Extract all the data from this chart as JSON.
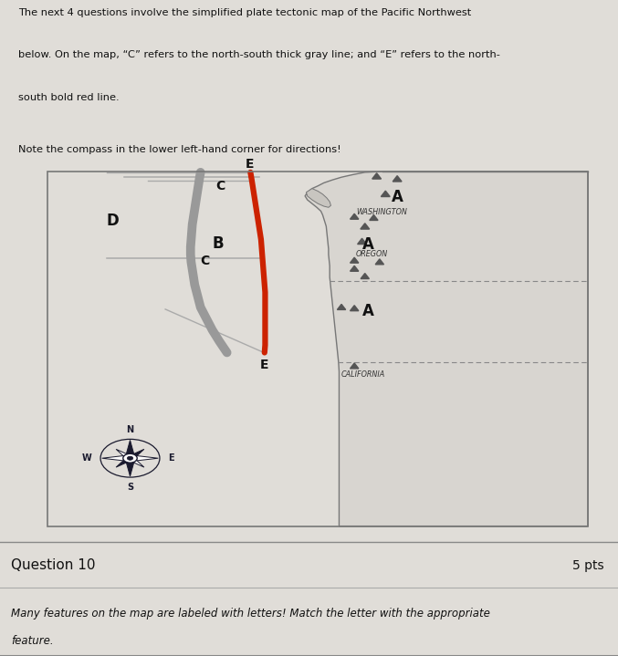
{
  "bg_color": "#e0ddd8",
  "map_area_bg": "#e8e5e0",
  "ocean_color": "#d8d5d0",
  "land_color": "#dddad5",
  "land_edge": "#888888",
  "gray_line_color": "#999999",
  "red_line_color": "#cc2200",
  "thin_line_color": "#aaaaaa",
  "compass_color": "#1a1a2e",
  "title_text1": "The next 4 questions involve the simplified plate tectonic map of the Pacific Northwest",
  "title_text2": "below. On the map, “C” refers to the north-south thick gray line; and “E” refers to the north-",
  "title_text3": "south bold red line.",
  "note_text": "Note the compass in the lower left-hand corner for directions!",
  "question_label": "Question 10",
  "pts_label": "5 pts",
  "question_body1": "Many features on the map are labeled with letters! Match the letter with the appropriate",
  "question_body2": "feature."
}
